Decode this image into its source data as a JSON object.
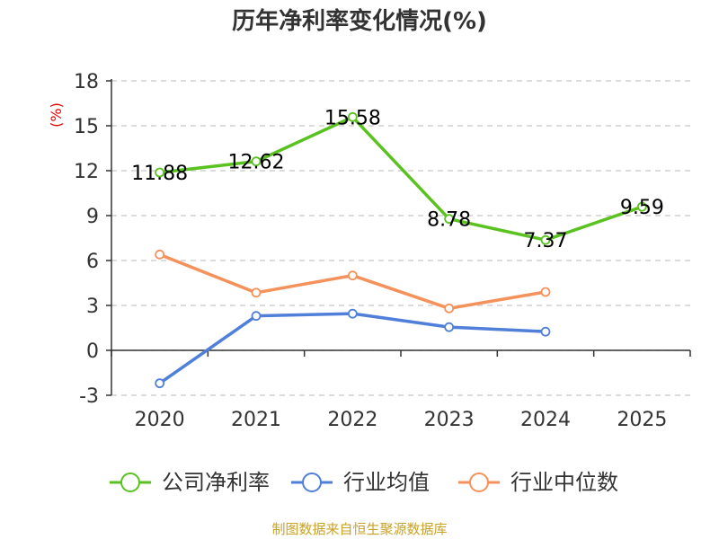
{
  "chart_data": {
    "type": "line",
    "title": "历年净利率变化情况(%)",
    "ylabel": "(%)",
    "categories": [
      "2020",
      "2021",
      "2022",
      "2023",
      "2024",
      "2025"
    ],
    "yticks": [
      "18",
      "15",
      "12",
      "9",
      "6",
      "3",
      "0",
      "-3"
    ],
    "ylim": [
      -3,
      18
    ],
    "grid": true,
    "legend_position": "bottom",
    "series": [
      {
        "name": "公司净利率",
        "color": "#5ac21f",
        "values": [
          11.88,
          12.62,
          15.58,
          8.78,
          7.37,
          9.59
        ],
        "labels": [
          "11.88",
          "12.62",
          "15.58",
          "8.78",
          "7.37",
          "9.59"
        ]
      },
      {
        "name": "行业均值",
        "color": "#4f7fd9",
        "values": [
          -2.2,
          2.3,
          2.45,
          1.55,
          1.25,
          null
        ]
      },
      {
        "name": "行业中位数",
        "color": "#f5915a",
        "values": [
          6.4,
          3.85,
          5.0,
          2.8,
          3.9,
          null
        ]
      }
    ]
  },
  "footer": {
    "source": "制图数据来自恒生聚源数据库"
  }
}
